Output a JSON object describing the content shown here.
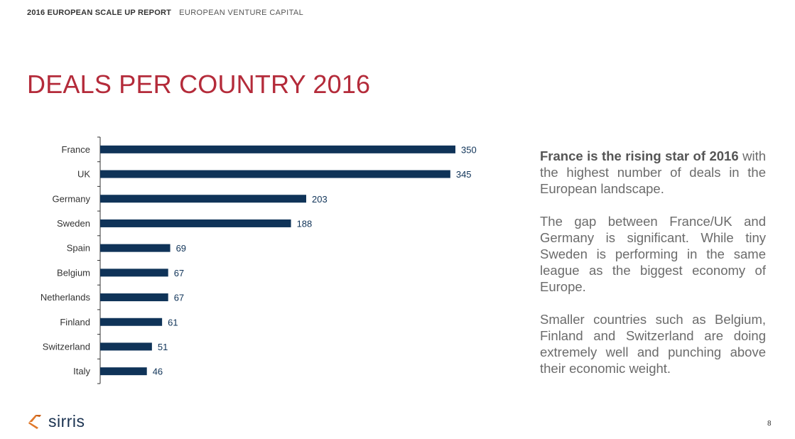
{
  "header": {
    "report": "2016 EUROPEAN SCALE UP REPORT",
    "section": "EUROPEAN VENTURE CAPITAL"
  },
  "page_title": "DEALS PER COUNTRY 2016",
  "chart_data": {
    "type": "bar",
    "orientation": "horizontal",
    "title": "",
    "xlabel": "",
    "ylabel": "",
    "categories": [
      "France",
      "UK",
      "Germany",
      "Sweden",
      "Spain",
      "Belgium",
      "Netherlands",
      "Finland",
      "Switzerland",
      "Italy"
    ],
    "values": [
      350,
      345,
      203,
      188,
      69,
      67,
      67,
      61,
      51,
      46
    ],
    "xlim": [
      0,
      350
    ],
    "grid": false,
    "data_labels": true,
    "bar_color": "#0f3358",
    "label_color": "#0f3358"
  },
  "commentary": {
    "lead": "France is the rising star of 2016",
    "lead_rest": "with the highest number of deals in the European landscape.",
    "p2": "The gap between France/UK and Germany is significant. While tiny Sweden is performing in the same league as the biggest economy of Europe.",
    "p3": "Smaller countries such as Belgium, Finland and Switzerland are doing extremely well and punching above their economic weight."
  },
  "footer": {
    "logo_text": "sirris",
    "page_number": "8"
  },
  "colors": {
    "title": "#b42b3a",
    "logo_accent": "#e0782a",
    "logo_text": "#1a3250"
  }
}
